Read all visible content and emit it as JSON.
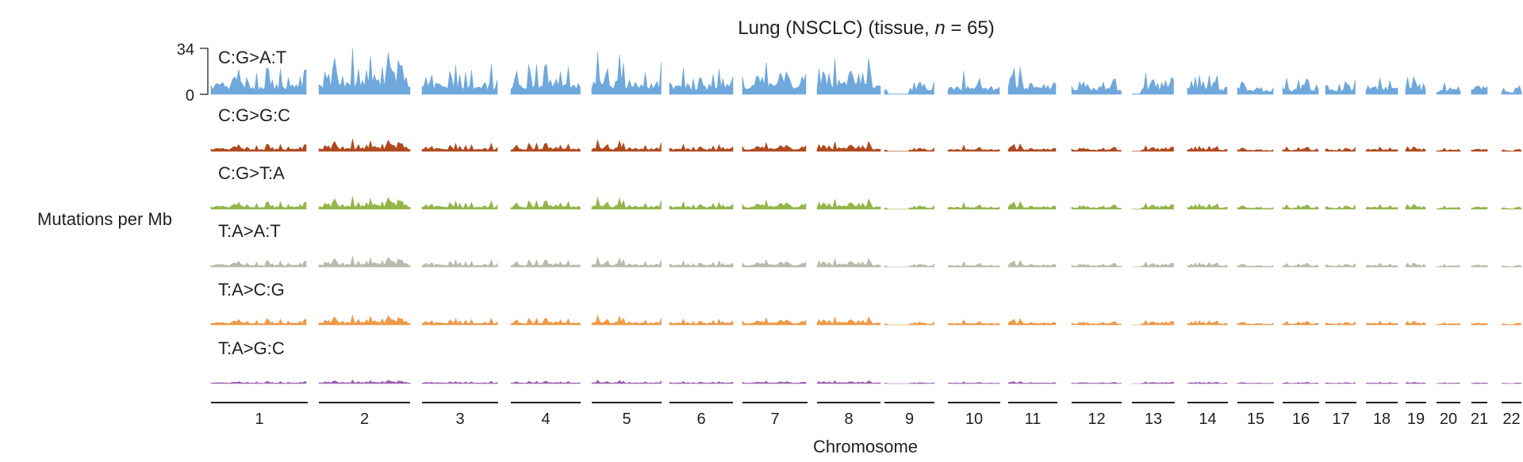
{
  "chart_data": {
    "type": "area",
    "title_prefix": "Lung (NSCLC) (tissue, ",
    "title_n_italic": "n",
    "title_suffix": " = 65)",
    "xlabel": "Chromosome",
    "ylabel": "Mutations per Mb",
    "y_scale_label_top": "34",
    "y_scale_label_bottom": "0",
    "ylim": [
      0,
      34
    ],
    "categories": [
      "1",
      "2",
      "3",
      "4",
      "5",
      "6",
      "7",
      "8",
      "9",
      "10",
      "11",
      "12",
      "13",
      "14",
      "15",
      "16",
      "17",
      "18",
      "19",
      "20",
      "21",
      "22"
    ],
    "series": [
      {
        "name": "C:G>A:T",
        "color": "#6fa8dc",
        "scale": 1.0,
        "chromosome_max": [
          22,
          34,
          26,
          24,
          32,
          20,
          26,
          28,
          14,
          18,
          22,
          20,
          18,
          17,
          12,
          16,
          13,
          17,
          16,
          10,
          18,
          7
        ]
      },
      {
        "name": "C:G>G:C",
        "color": "#b04a1e",
        "scale": 0.27,
        "chromosome_max": [
          22,
          34,
          26,
          24,
          32,
          20,
          26,
          28,
          14,
          18,
          22,
          20,
          18,
          17,
          12,
          16,
          13,
          17,
          16,
          10,
          18,
          7
        ]
      },
      {
        "name": "C:G>T:A",
        "color": "#93b54a",
        "scale": 0.28,
        "chromosome_max": [
          22,
          34,
          26,
          24,
          32,
          20,
          26,
          28,
          14,
          18,
          22,
          20,
          18,
          17,
          12,
          16,
          13,
          17,
          16,
          10,
          18,
          7
        ]
      },
      {
        "name": "T:A>A:T",
        "color": "#b9bcaa",
        "scale": 0.24,
        "chromosome_max": [
          22,
          34,
          26,
          24,
          32,
          20,
          26,
          28,
          14,
          18,
          22,
          20,
          18,
          17,
          12,
          16,
          13,
          17,
          16,
          10,
          18,
          7
        ]
      },
      {
        "name": "T:A>C:G",
        "color": "#ef9a48",
        "scale": 0.22,
        "chromosome_max": [
          22,
          34,
          26,
          24,
          32,
          20,
          26,
          28,
          14,
          18,
          22,
          20,
          18,
          17,
          12,
          16,
          13,
          17,
          16,
          10,
          18,
          7
        ]
      },
      {
        "name": "T:A>G:C",
        "color": "#9a5fb0",
        "scale": 0.08,
        "chromosome_max": [
          22,
          34,
          26,
          24,
          32,
          20,
          26,
          28,
          14,
          18,
          22,
          20,
          18,
          17,
          12,
          16,
          13,
          17,
          16,
          10,
          18,
          7
        ]
      }
    ],
    "grid": false,
    "legend": "none"
  }
}
